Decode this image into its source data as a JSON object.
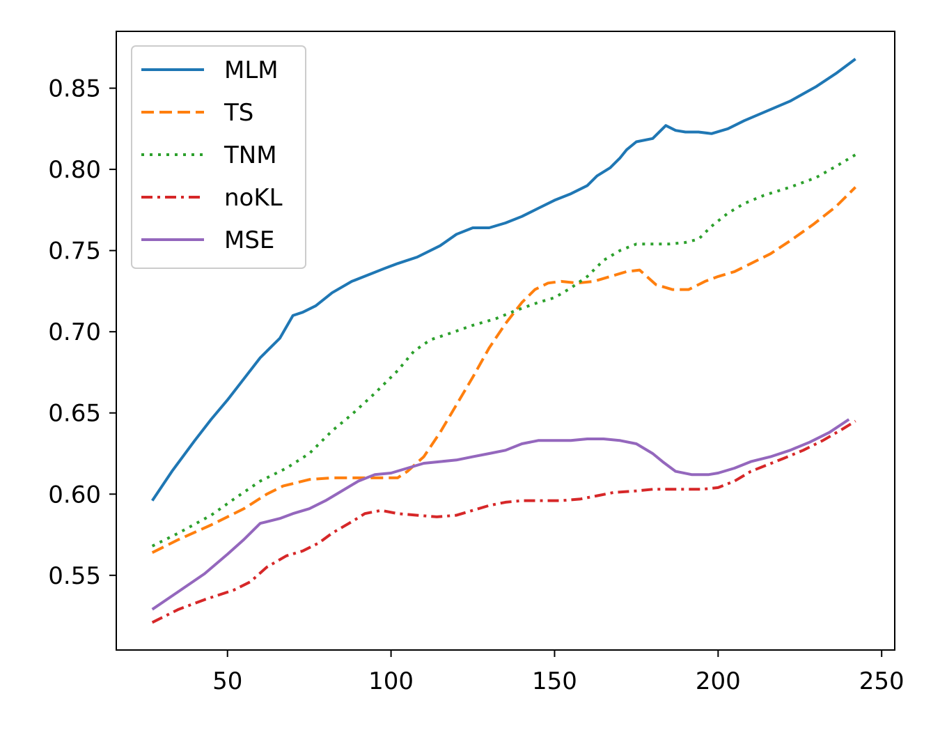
{
  "chart_data": {
    "type": "line",
    "title": "",
    "xlabel": "",
    "ylabel": "",
    "xlim": [
      16,
      254
    ],
    "ylim": [
      0.504,
      0.885
    ],
    "xticks": [
      50,
      100,
      150,
      200,
      250
    ],
    "yticks": [
      0.55,
      0.6,
      0.65,
      0.7,
      0.75,
      0.8,
      0.85
    ],
    "xtick_labels": [
      "50",
      "100",
      "150",
      "200",
      "250"
    ],
    "ytick_labels": [
      "0.55",
      "0.60",
      "0.65",
      "0.70",
      "0.75",
      "0.80",
      "0.85"
    ],
    "grid": false,
    "legend_position": "upper-left",
    "series": [
      {
        "name": "MLM",
        "color": "#1f77b4",
        "dash": "solid",
        "points": [
          [
            27,
            0.596
          ],
          [
            33,
            0.614
          ],
          [
            40,
            0.633
          ],
          [
            45,
            0.646
          ],
          [
            50,
            0.658
          ],
          [
            55,
            0.671
          ],
          [
            60,
            0.684
          ],
          [
            66,
            0.696
          ],
          [
            70,
            0.71
          ],
          [
            73,
            0.712
          ],
          [
            77,
            0.716
          ],
          [
            82,
            0.724
          ],
          [
            88,
            0.731
          ],
          [
            93,
            0.735
          ],
          [
            98,
            0.739
          ],
          [
            102,
            0.742
          ],
          [
            108,
            0.746
          ],
          [
            115,
            0.753
          ],
          [
            120,
            0.76
          ],
          [
            125,
            0.764
          ],
          [
            130,
            0.764
          ],
          [
            135,
            0.767
          ],
          [
            140,
            0.771
          ],
          [
            145,
            0.776
          ],
          [
            150,
            0.781
          ],
          [
            155,
            0.785
          ],
          [
            160,
            0.79
          ],
          [
            163,
            0.796
          ],
          [
            167,
            0.801
          ],
          [
            170,
            0.807
          ],
          [
            172,
            0.812
          ],
          [
            175,
            0.817
          ],
          [
            180,
            0.819
          ],
          [
            184,
            0.827
          ],
          [
            187,
            0.824
          ],
          [
            190,
            0.823
          ],
          [
            194,
            0.823
          ],
          [
            198,
            0.822
          ],
          [
            203,
            0.825
          ],
          [
            208,
            0.83
          ],
          [
            215,
            0.836
          ],
          [
            222,
            0.842
          ],
          [
            230,
            0.851
          ],
          [
            236,
            0.859
          ],
          [
            242,
            0.868
          ]
        ]
      },
      {
        "name": "TS",
        "color": "#ff7f0e",
        "dash": "dashed",
        "points": [
          [
            27,
            0.564
          ],
          [
            35,
            0.572
          ],
          [
            45,
            0.581
          ],
          [
            55,
            0.591
          ],
          [
            62,
            0.6
          ],
          [
            67,
            0.605
          ],
          [
            75,
            0.609
          ],
          [
            82,
            0.61
          ],
          [
            90,
            0.61
          ],
          [
            95,
            0.61
          ],
          [
            102,
            0.61
          ],
          [
            105,
            0.614
          ],
          [
            110,
            0.623
          ],
          [
            115,
            0.638
          ],
          [
            120,
            0.655
          ],
          [
            125,
            0.672
          ],
          [
            130,
            0.69
          ],
          [
            135,
            0.705
          ],
          [
            140,
            0.718
          ],
          [
            144,
            0.726
          ],
          [
            148,
            0.73
          ],
          [
            152,
            0.731
          ],
          [
            157,
            0.73
          ],
          [
            162,
            0.731
          ],
          [
            167,
            0.734
          ],
          [
            172,
            0.737
          ],
          [
            176,
            0.738
          ],
          [
            181,
            0.729
          ],
          [
            186,
            0.726
          ],
          [
            191,
            0.726
          ],
          [
            196,
            0.731
          ],
          [
            200,
            0.734
          ],
          [
            205,
            0.737
          ],
          [
            210,
            0.742
          ],
          [
            216,
            0.748
          ],
          [
            222,
            0.756
          ],
          [
            229,
            0.766
          ],
          [
            236,
            0.777
          ],
          [
            242,
            0.789
          ]
        ]
      },
      {
        "name": "TNM",
        "color": "#2ca02c",
        "dash": "dotted",
        "points": [
          [
            27,
            0.568
          ],
          [
            35,
            0.576
          ],
          [
            45,
            0.587
          ],
          [
            52,
            0.597
          ],
          [
            60,
            0.608
          ],
          [
            68,
            0.616
          ],
          [
            75,
            0.625
          ],
          [
            82,
            0.639
          ],
          [
            88,
            0.649
          ],
          [
            95,
            0.662
          ],
          [
            102,
            0.676
          ],
          [
            107,
            0.688
          ],
          [
            112,
            0.695
          ],
          [
            118,
            0.699
          ],
          [
            125,
            0.704
          ],
          [
            132,
            0.708
          ],
          [
            138,
            0.713
          ],
          [
            145,
            0.718
          ],
          [
            150,
            0.721
          ],
          [
            155,
            0.727
          ],
          [
            160,
            0.734
          ],
          [
            165,
            0.744
          ],
          [
            170,
            0.75
          ],
          [
            175,
            0.754
          ],
          [
            180,
            0.754
          ],
          [
            185,
            0.754
          ],
          [
            190,
            0.755
          ],
          [
            194,
            0.757
          ],
          [
            198,
            0.765
          ],
          [
            203,
            0.773
          ],
          [
            208,
            0.779
          ],
          [
            214,
            0.784
          ],
          [
            222,
            0.789
          ],
          [
            230,
            0.795
          ],
          [
            237,
            0.803
          ],
          [
            242,
            0.809
          ]
        ]
      },
      {
        "name": "noKL",
        "color": "#d62728",
        "dash": "dashdot",
        "points": [
          [
            27,
            0.521
          ],
          [
            35,
            0.529
          ],
          [
            43,
            0.535
          ],
          [
            52,
            0.541
          ],
          [
            57,
            0.546
          ],
          [
            62,
            0.555
          ],
          [
            68,
            0.562
          ],
          [
            73,
            0.565
          ],
          [
            78,
            0.57
          ],
          [
            82,
            0.576
          ],
          [
            88,
            0.583
          ],
          [
            92,
            0.588
          ],
          [
            97,
            0.59
          ],
          [
            102,
            0.588
          ],
          [
            108,
            0.587
          ],
          [
            114,
            0.586
          ],
          [
            120,
            0.587
          ],
          [
            125,
            0.59
          ],
          [
            130,
            0.593
          ],
          [
            135,
            0.595
          ],
          [
            140,
            0.596
          ],
          [
            146,
            0.596
          ],
          [
            152,
            0.596
          ],
          [
            158,
            0.597
          ],
          [
            163,
            0.599
          ],
          [
            168,
            0.601
          ],
          [
            175,
            0.602
          ],
          [
            180,
            0.603
          ],
          [
            185,
            0.603
          ],
          [
            190,
            0.603
          ],
          [
            195,
            0.603
          ],
          [
            200,
            0.604
          ],
          [
            205,
            0.608
          ],
          [
            210,
            0.614
          ],
          [
            215,
            0.618
          ],
          [
            220,
            0.622
          ],
          [
            226,
            0.627
          ],
          [
            232,
            0.633
          ],
          [
            238,
            0.64
          ],
          [
            242,
            0.645
          ]
        ]
      },
      {
        "name": "MSE",
        "color": "#9467bd",
        "dash": "solid",
        "points": [
          [
            27,
            0.529
          ],
          [
            35,
            0.54
          ],
          [
            43,
            0.551
          ],
          [
            50,
            0.563
          ],
          [
            55,
            0.572
          ],
          [
            60,
            0.582
          ],
          [
            66,
            0.585
          ],
          [
            70,
            0.588
          ],
          [
            75,
            0.591
          ],
          [
            80,
            0.596
          ],
          [
            85,
            0.602
          ],
          [
            90,
            0.608
          ],
          [
            95,
            0.612
          ],
          [
            100,
            0.613
          ],
          [
            105,
            0.616
          ],
          [
            110,
            0.619
          ],
          [
            115,
            0.62
          ],
          [
            120,
            0.621
          ],
          [
            125,
            0.623
          ],
          [
            130,
            0.625
          ],
          [
            135,
            0.627
          ],
          [
            140,
            0.631
          ],
          [
            145,
            0.633
          ],
          [
            150,
            0.633
          ],
          [
            155,
            0.633
          ],
          [
            160,
            0.634
          ],
          [
            165,
            0.634
          ],
          [
            170,
            0.633
          ],
          [
            175,
            0.631
          ],
          [
            180,
            0.625
          ],
          [
            183,
            0.62
          ],
          [
            187,
            0.614
          ],
          [
            192,
            0.612
          ],
          [
            197,
            0.612
          ],
          [
            200,
            0.613
          ],
          [
            205,
            0.616
          ],
          [
            210,
            0.62
          ],
          [
            216,
            0.623
          ],
          [
            222,
            0.627
          ],
          [
            228,
            0.632
          ],
          [
            234,
            0.638
          ],
          [
            240,
            0.646
          ]
        ]
      }
    ]
  }
}
